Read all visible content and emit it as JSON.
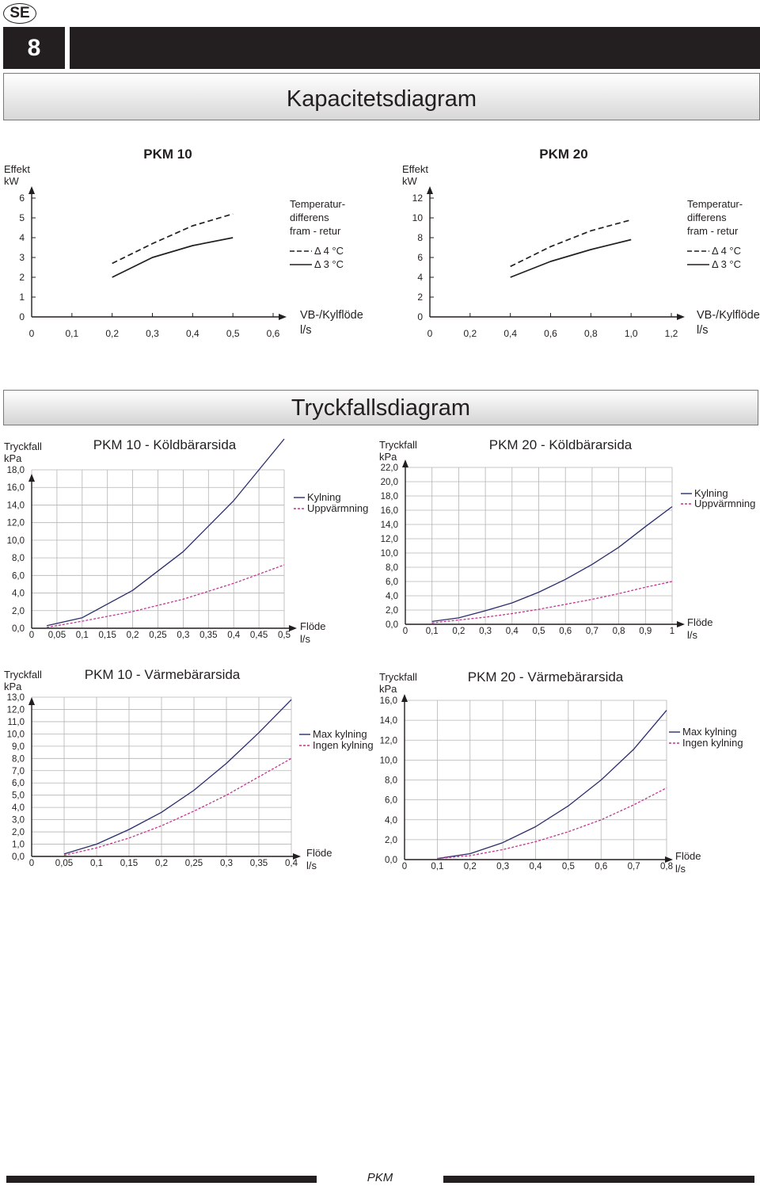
{
  "header": {
    "lang_badge": "SE",
    "page_number": "8",
    "capacity_title": "Kapacitetsdiagram",
    "pressure_title": "Tryckfallsdiagram"
  },
  "footer": {
    "label": "PKM"
  },
  "colors": {
    "navy": "#2b2d6b",
    "magenta": "#c2358f",
    "black": "#231f20"
  },
  "chart_data": [
    {
      "id": "cap10",
      "type": "line",
      "title": "PKM 10",
      "ylabel": [
        "Effekt",
        "kW"
      ],
      "xlabel": [
        "VB-/Kylflöde",
        "l/s"
      ],
      "xlim": [
        0,
        0.6
      ],
      "ylim": [
        0,
        6
      ],
      "x_ticks": [
        0,
        0.1,
        0.2,
        0.3,
        0.4,
        0.5,
        0.6
      ],
      "x_tick_labels": [
        "0",
        "0,1",
        "0,2",
        "0,3",
        "0,4",
        "0,5",
        "0,6"
      ],
      "y_ticks": [
        0,
        1,
        2,
        3,
        4,
        5,
        6
      ],
      "y_tick_labels": [
        "0",
        "1",
        "2",
        "3",
        "4",
        "5",
        "6"
      ],
      "legend_title": [
        "Temperatur-",
        "differens",
        "fram - retur"
      ],
      "series": [
        {
          "name": "Δ 4 °C",
          "style": "dashed",
          "color": "#231f20",
          "x": [
            0.2,
            0.3,
            0.4,
            0.5
          ],
          "y": [
            2.7,
            3.7,
            4.6,
            5.2
          ]
        },
        {
          "name": "Δ 3 °C",
          "style": "solid",
          "color": "#231f20",
          "x": [
            0.2,
            0.3,
            0.4,
            0.5
          ],
          "y": [
            2.0,
            3.0,
            3.6,
            4.0
          ]
        }
      ]
    },
    {
      "id": "cap20",
      "type": "line",
      "title": "PKM 20",
      "ylabel": [
        "Effekt",
        "kW"
      ],
      "xlabel": [
        "VB-/Kylflöde",
        "l/s"
      ],
      "xlim": [
        0,
        1.2
      ],
      "ylim": [
        0,
        12
      ],
      "x_ticks": [
        0,
        0.2,
        0.4,
        0.6,
        0.8,
        1.0,
        1.2
      ],
      "x_tick_labels": [
        "0",
        "0,2",
        "0,4",
        "0,6",
        "0,8",
        "1,0",
        "1,2"
      ],
      "y_ticks": [
        0,
        2,
        4,
        6,
        8,
        10,
        12
      ],
      "y_tick_labels": [
        "0",
        "2",
        "4",
        "6",
        "8",
        "10",
        "12"
      ],
      "legend_title": [
        "Temperatur-",
        "differens",
        "fram - retur"
      ],
      "series": [
        {
          "name": "Δ 4 °C",
          "style": "dashed",
          "color": "#231f20",
          "x": [
            0.4,
            0.6,
            0.8,
            1.0
          ],
          "y": [
            5.1,
            7.1,
            8.7,
            9.8
          ]
        },
        {
          "name": "Δ 3 °C",
          "style": "solid",
          "color": "#231f20",
          "x": [
            0.4,
            0.6,
            0.8,
            1.0
          ],
          "y": [
            4.0,
            5.6,
            6.8,
            7.8
          ]
        }
      ]
    },
    {
      "id": "p10k",
      "type": "line",
      "title": "PKM 10 - Köldbärarsida",
      "ylabel": [
        "Tryckfall",
        "kPa"
      ],
      "xlabel": [
        "Flöde",
        "l/s"
      ],
      "xlim": [
        0,
        0.5
      ],
      "ylim": [
        0,
        18
      ],
      "x_ticks": [
        0,
        0.05,
        0.1,
        0.15,
        0.2,
        0.25,
        0.3,
        0.35,
        0.4,
        0.45,
        0.5
      ],
      "x_tick_labels": [
        "0",
        "0,05",
        "0,1",
        "0,15",
        "0,2",
        "0,25",
        "0,3",
        "0,35",
        "0,4",
        "0,45",
        "0,5"
      ],
      "y_ticks": [
        0,
        2,
        4,
        6,
        8,
        10,
        12,
        14,
        16,
        18
      ],
      "y_tick_labels": [
        "0,0",
        "2,0",
        "4,0",
        "6,0",
        "8,0",
        "10,0",
        "12,0",
        "14,0",
        "16,0",
        "18,0"
      ],
      "series": [
        {
          "name": "Kylning",
          "style": "solid",
          "color": "#2b2d6b",
          "x": [
            0.03,
            0.1,
            0.2,
            0.3,
            0.4,
            0.5
          ],
          "y": [
            0.3,
            1.2,
            4.3,
            8.7,
            14.5,
            21.5
          ]
        },
        {
          "name": "Uppvärmning",
          "style": "dashed",
          "color": "#c2358f",
          "x": [
            0.03,
            0.1,
            0.2,
            0.3,
            0.4,
            0.5
          ],
          "y": [
            0.1,
            0.8,
            1.9,
            3.3,
            5.1,
            7.2
          ]
        }
      ]
    },
    {
      "id": "p20k",
      "type": "line",
      "title": "PKM 20 - Köldbärarsida",
      "ylabel": [
        "Tryckfall",
        "kPa"
      ],
      "xlabel": [
        "Flöde",
        "l/s"
      ],
      "xlim": [
        0,
        1
      ],
      "ylim": [
        0,
        22
      ],
      "x_ticks": [
        0,
        0.1,
        0.2,
        0.3,
        0.4,
        0.5,
        0.6,
        0.7,
        0.8,
        0.9,
        1.0
      ],
      "x_tick_labels": [
        "0",
        "0,1",
        "0,2",
        "0,3",
        "0,4",
        "0,5",
        "0,6",
        "0,7",
        "0,8",
        "0,9",
        "1"
      ],
      "y_ticks": [
        0,
        2,
        4,
        6,
        8,
        10,
        12,
        14,
        16,
        18,
        20,
        22
      ],
      "y_tick_labels": [
        "0,0",
        "2,0",
        "4,0",
        "6,0",
        "8,0",
        "10,0",
        "12,0",
        "14,0",
        "16,0",
        "18,0",
        "20,0",
        "22,0"
      ],
      "series": [
        {
          "name": "Kylning",
          "style": "solid",
          "color": "#2b2d6b",
          "x": [
            0.1,
            0.2,
            0.3,
            0.4,
            0.5,
            0.6,
            0.7,
            0.8,
            0.9,
            1.0
          ],
          "y": [
            0.4,
            0.9,
            1.9,
            3.0,
            4.5,
            6.3,
            8.4,
            10.8,
            13.7,
            16.5
          ]
        },
        {
          "name": "Uppvärmning",
          "style": "dashed",
          "color": "#c2358f",
          "x": [
            0.1,
            0.2,
            0.3,
            0.4,
            0.5,
            0.6,
            0.7,
            0.8,
            0.9,
            1.0
          ],
          "y": [
            0.2,
            0.6,
            1.0,
            1.5,
            2.1,
            2.8,
            3.5,
            4.3,
            5.2,
            6.0
          ]
        }
      ]
    },
    {
      "id": "p10v",
      "type": "line",
      "title": "PKM 10 - Värmebärarsida",
      "ylabel": [
        "Tryckfall",
        "kPa"
      ],
      "xlabel": [
        "Flöde",
        "l/s"
      ],
      "xlim": [
        0,
        0.4
      ],
      "ylim": [
        0,
        13
      ],
      "x_ticks": [
        0,
        0.05,
        0.1,
        0.15,
        0.2,
        0.25,
        0.3,
        0.35,
        0.4
      ],
      "x_tick_labels": [
        "0",
        "0,05",
        "0,1",
        "0,15",
        "0,2",
        "0,25",
        "0,3",
        "0,35",
        "0,4"
      ],
      "y_ticks": [
        0,
        1,
        2,
        3,
        4,
        5,
        6,
        7,
        8,
        9,
        10,
        11,
        12,
        13
      ],
      "y_tick_labels": [
        "0,0",
        "1,0",
        "2,0",
        "3,0",
        "4,0",
        "5,0",
        "6,0",
        "7,0",
        "8,0",
        "9,0",
        "10,0",
        "11,0",
        "12,0",
        "13,0"
      ],
      "series": [
        {
          "name": "Max kylning",
          "style": "solid",
          "color": "#2b2d6b",
          "x": [
            0.05,
            0.1,
            0.15,
            0.2,
            0.25,
            0.3,
            0.35,
            0.4
          ],
          "y": [
            0.2,
            1.0,
            2.2,
            3.6,
            5.4,
            7.6,
            10.1,
            12.8
          ]
        },
        {
          "name": "Ingen kylning",
          "style": "dashed",
          "color": "#c2358f",
          "x": [
            0.05,
            0.1,
            0.15,
            0.2,
            0.25,
            0.3,
            0.35,
            0.4
          ],
          "y": [
            0.1,
            0.7,
            1.5,
            2.5,
            3.7,
            5.0,
            6.5,
            8.0
          ]
        }
      ]
    },
    {
      "id": "p20v",
      "type": "line",
      "title": "PKM 20 - Värmebärarsida",
      "ylabel": [
        "Tryckfall",
        "kPa"
      ],
      "xlabel": [
        "Flöde",
        "l/s"
      ],
      "xlim": [
        0,
        0.8
      ],
      "ylim": [
        0,
        16
      ],
      "x_ticks": [
        0,
        0.1,
        0.2,
        0.3,
        0.4,
        0.5,
        0.6,
        0.7,
        0.8
      ],
      "x_tick_labels": [
        "0",
        "0,1",
        "0,2",
        "0,3",
        "0,4",
        "0,5",
        "0,6",
        "0,7",
        "0,8"
      ],
      "y_ticks": [
        0,
        2,
        4,
        6,
        8,
        10,
        12,
        14,
        16
      ],
      "y_tick_labels": [
        "0,0",
        "2,0",
        "4,0",
        "6,0",
        "8,0",
        "10,0",
        "12,0",
        "14,0",
        "16,0"
      ],
      "series": [
        {
          "name": "Max kylning",
          "style": "solid",
          "color": "#2b2d6b",
          "x": [
            0.1,
            0.2,
            0.3,
            0.4,
            0.5,
            0.6,
            0.7,
            0.8
          ],
          "y": [
            0.1,
            0.6,
            1.7,
            3.3,
            5.4,
            8.0,
            11.1,
            15.0
          ]
        },
        {
          "name": "Ingen kylning",
          "style": "dashed",
          "color": "#c2358f",
          "x": [
            0.1,
            0.2,
            0.3,
            0.4,
            0.5,
            0.6,
            0.7,
            0.8
          ],
          "y": [
            0.1,
            0.4,
            1.0,
            1.8,
            2.8,
            4.0,
            5.5,
            7.2
          ]
        }
      ]
    }
  ]
}
